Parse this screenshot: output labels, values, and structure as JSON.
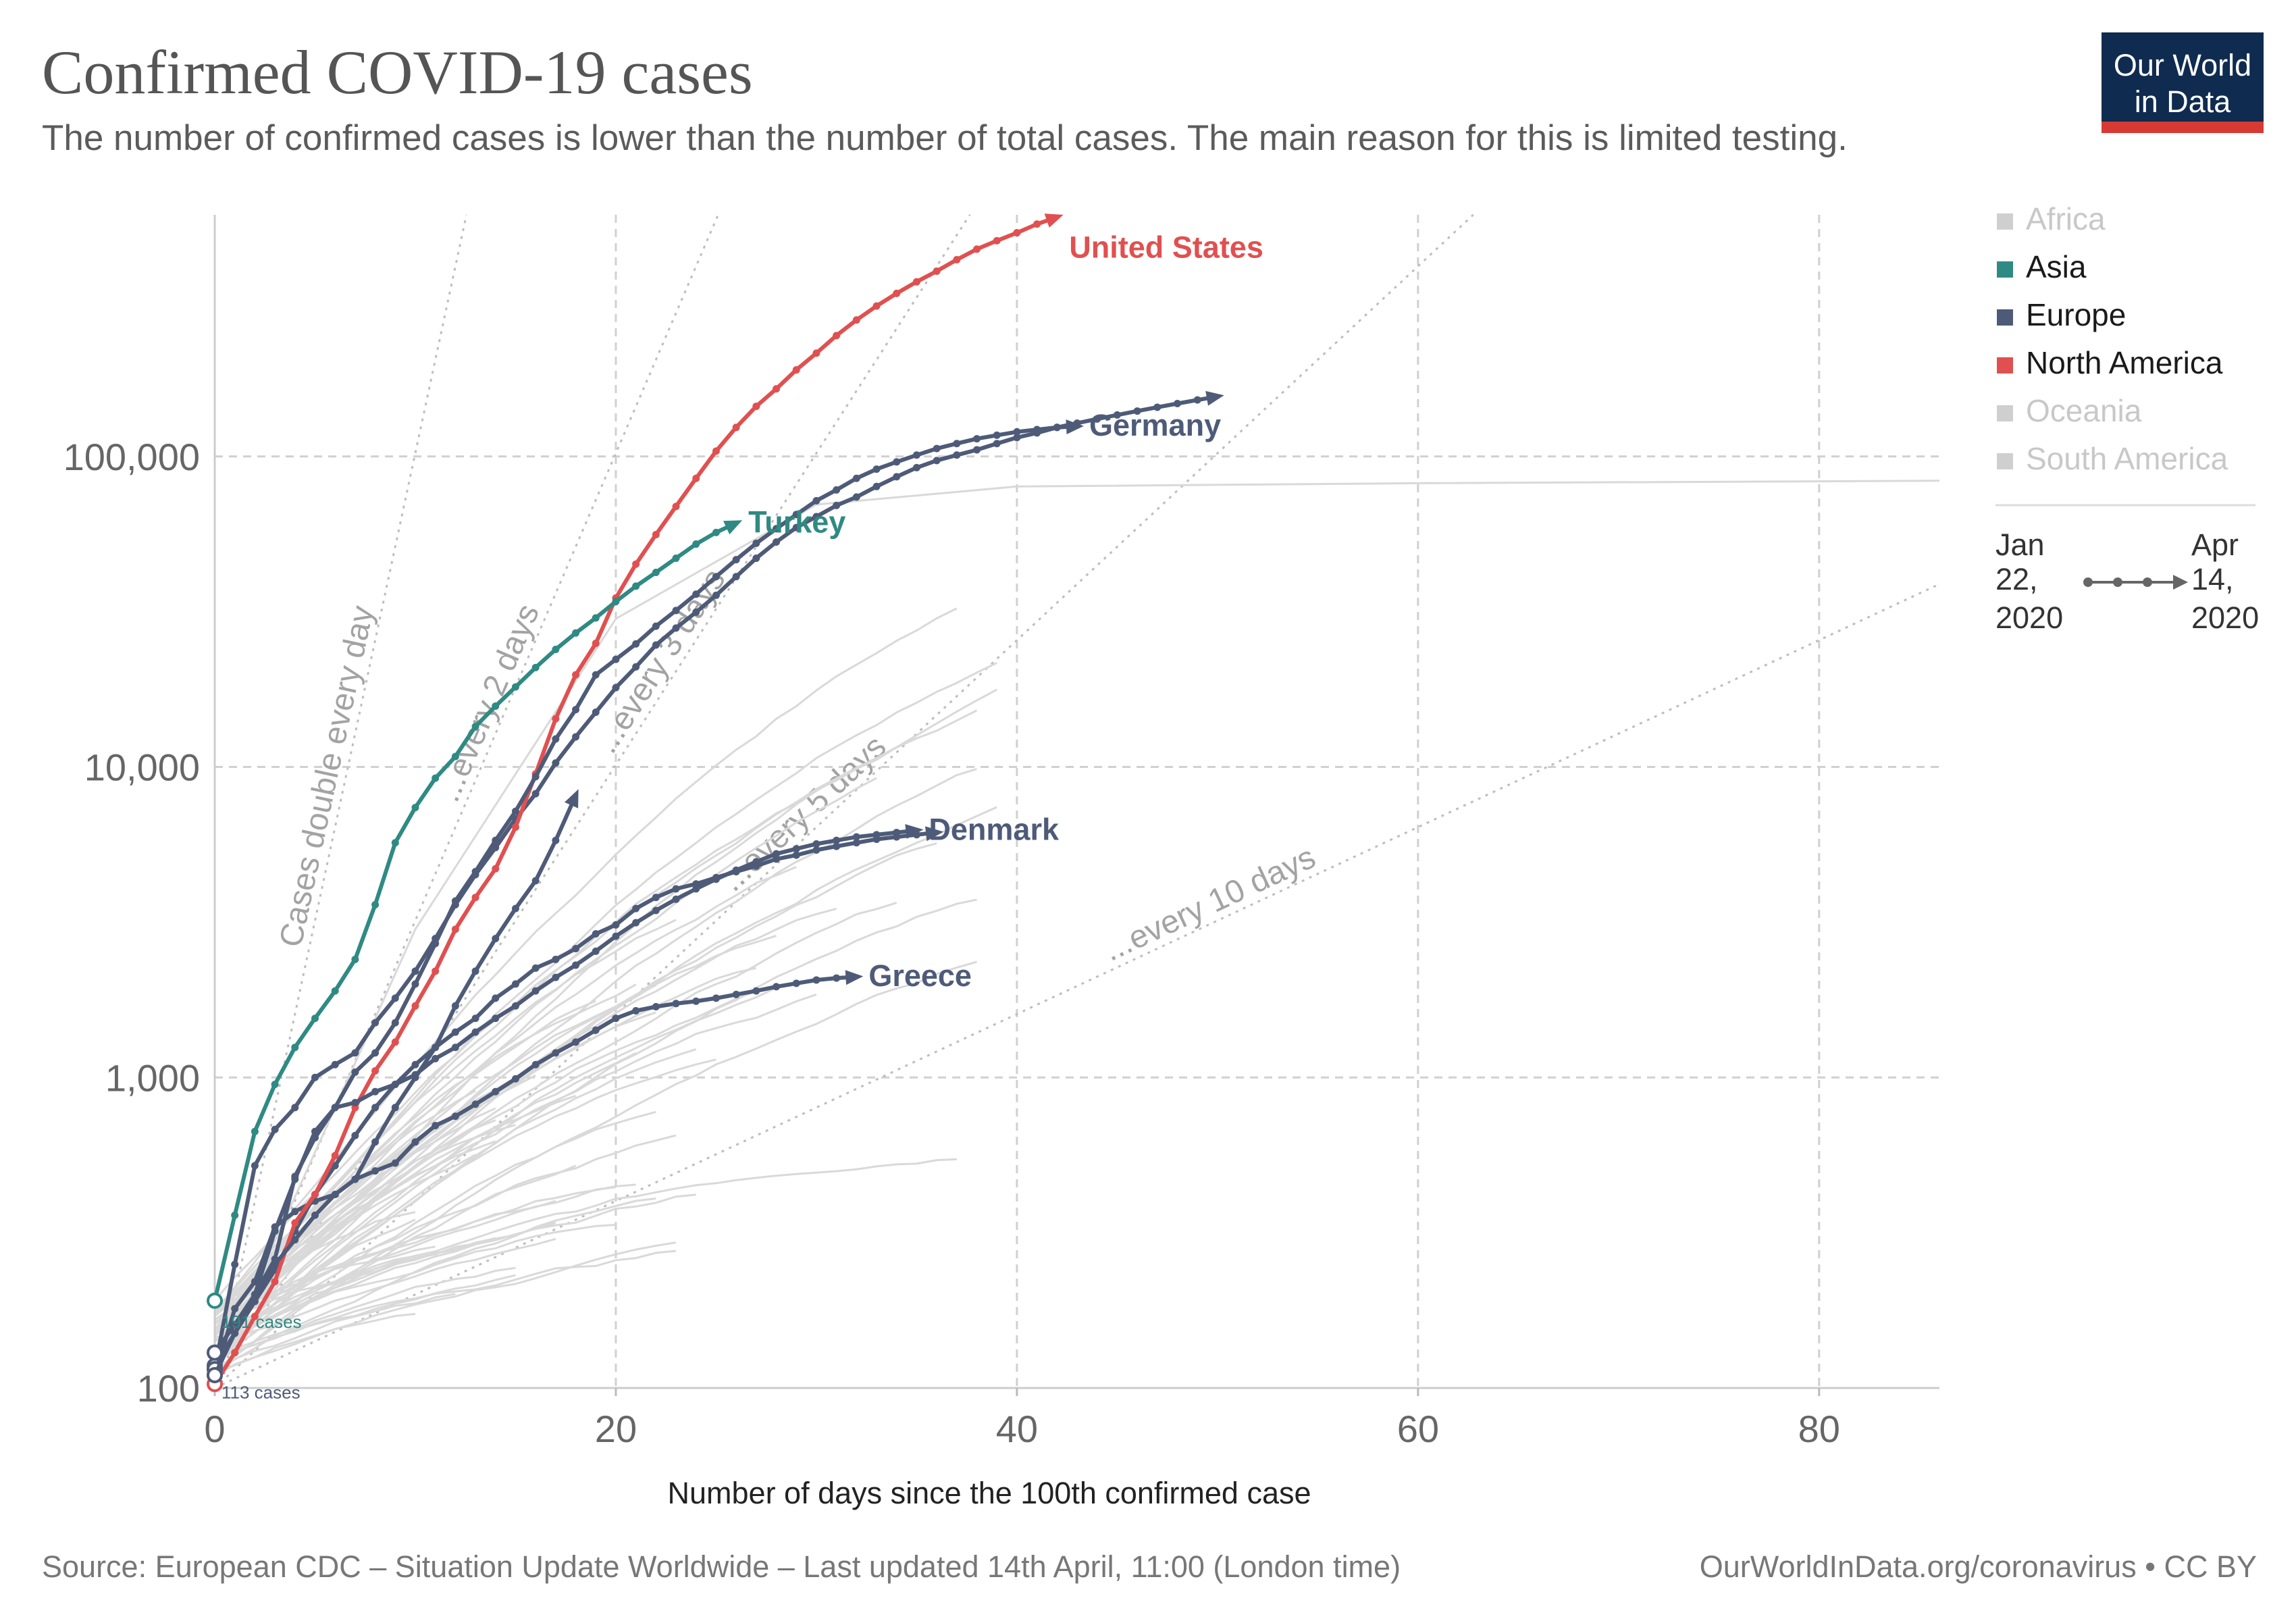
{
  "header": {
    "title": "Confirmed COVID-19 cases",
    "subtitle": "The number of confirmed cases is lower than the number of total cases. The main reason for this is limited testing."
  },
  "logo": {
    "line1": "Our World",
    "line2": "in Data",
    "bg_color": "#0f2b4f",
    "accent_color": "#d73a33"
  },
  "legend": {
    "regions": [
      {
        "label": "Africa",
        "color": "#cfcfcf",
        "text_color": "#c8c8c8"
      },
      {
        "label": "Asia",
        "color": "#2f8a83",
        "text_color": "#1a1a1a"
      },
      {
        "label": "Europe",
        "color": "#4e5b78",
        "text_color": "#1a1a1a"
      },
      {
        "label": "North America",
        "color": "#e05050",
        "text_color": "#1a1a1a"
      },
      {
        "label": "Oceania",
        "color": "#cfcfcf",
        "text_color": "#c8c8c8"
      },
      {
        "label": "South America",
        "color": "#cfcfcf",
        "text_color": "#c8c8c8"
      }
    ],
    "time_start": [
      "Jan",
      "22,",
      "2020"
    ],
    "time_end": [
      "Apr",
      "14,",
      "2020"
    ]
  },
  "footer": {
    "source": "Source: European CDC – Situation Update Worldwide – Last updated 14th April, 11:00 (London time)",
    "credit": "OurWorldInData.org/coronavirus • CC BY"
  },
  "chart_data": {
    "type": "line",
    "xlabel": "Number of days since the 100th confirmed case",
    "ylabel": "",
    "x_scale": "linear",
    "y_scale": "log",
    "xlim": [
      0,
      86
    ],
    "ylim": [
      100,
      600000
    ],
    "x_ticks": [
      0,
      20,
      40,
      60,
      80
    ],
    "x_tick_labels": [
      "0",
      "20",
      "40",
      "60",
      "80"
    ],
    "y_ticks": [
      100,
      1000,
      10000,
      100000
    ],
    "y_tick_labels": [
      "100",
      "1,000",
      "10,000",
      "100,000"
    ],
    "grid": true,
    "legend_position": "right",
    "guides": [
      {
        "label": "Cases double every day",
        "doubling_days": 1
      },
      {
        "label": "...every 2 days",
        "doubling_days": 2
      },
      {
        "label": "...every 3 days",
        "doubling_days": 3
      },
      {
        "label": "...every 5 days",
        "doubling_days": 5
      },
      {
        "label": "...every 10 days",
        "doubling_days": 10
      }
    ],
    "start_annotations": [
      {
        "label": "191 cases",
        "value": 191,
        "color": "#2f8a83"
      },
      {
        "label": "113 cases",
        "value": 113,
        "color": "#4e5b78"
      }
    ],
    "series": [
      {
        "name": "United States",
        "region": "North America",
        "color": "#e05050",
        "x": [
          0,
          1,
          2,
          3,
          4,
          5,
          6,
          7,
          8,
          9,
          10,
          11,
          12,
          13,
          14,
          15,
          16,
          17,
          18,
          19,
          20,
          21,
          22,
          23,
          24,
          25,
          26,
          27,
          28,
          29,
          30,
          31,
          32,
          33,
          34,
          35,
          36,
          37,
          38,
          39,
          40,
          41,
          42
        ],
        "y": [
          103,
          130,
          170,
          220,
          340,
          420,
          560,
          800,
          1050,
          1300,
          1700,
          2200,
          3000,
          3800,
          4700,
          6400,
          9500,
          14300,
          19800,
          25000,
          35000,
          45000,
          56000,
          69000,
          85000,
          104000,
          124000,
          145000,
          165000,
          190000,
          215000,
          245000,
          275000,
          305000,
          335000,
          365000,
          395000,
          430000,
          465000,
          495000,
          525000,
          560000,
          590000
        ]
      },
      {
        "name": "Turkey",
        "region": "Asia",
        "color": "#2f8a83",
        "x": [
          0,
          1,
          2,
          3,
          4,
          5,
          6,
          7,
          8,
          9,
          10,
          11,
          12,
          13,
          14,
          15,
          16,
          17,
          18,
          19,
          20,
          21,
          22,
          23,
          24,
          25,
          26
        ],
        "y": [
          191,
          360,
          670,
          950,
          1250,
          1550,
          1900,
          2400,
          3600,
          5700,
          7400,
          9200,
          10800,
          13500,
          15700,
          18100,
          20900,
          23900,
          27000,
          30200,
          34100,
          38200,
          42300,
          47000,
          52200,
          56900,
          61000
        ]
      },
      {
        "name": "Germany",
        "region": "Europe",
        "color": "#4e5b78",
        "x": [
          0,
          1,
          2,
          3,
          4,
          5,
          6,
          7,
          8,
          9,
          10,
          11,
          12,
          13,
          14,
          15,
          16,
          17,
          18,
          19,
          20,
          21,
          22,
          23,
          24,
          25,
          26,
          27,
          28,
          29,
          30,
          31,
          32,
          33,
          34,
          35,
          36,
          37,
          38,
          39,
          40,
          41,
          42,
          43
        ],
        "y": [
          130,
          160,
          200,
          260,
          480,
          640,
          800,
          1040,
          1200,
          1500,
          2000,
          2700,
          3700,
          4600,
          5800,
          7200,
          9300,
          12300,
          15300,
          19800,
          22200,
          24900,
          28400,
          31900,
          36000,
          41000,
          46500,
          52500,
          58500,
          65000,
          72000,
          78000,
          85000,
          91000,
          96000,
          101000,
          106000,
          110000,
          114000,
          117000,
          120000,
          122000,
          124000,
          125000
        ]
      },
      {
        "name": "Denmark",
        "region": "Europe",
        "color": "#4e5b78",
        "x": [
          0,
          1,
          2,
          3,
          4,
          5,
          6,
          7,
          8,
          9,
          10,
          11,
          12,
          13,
          14,
          15,
          16,
          17,
          18,
          19,
          20,
          21,
          22,
          23,
          24,
          25,
          26,
          27,
          28,
          29,
          30,
          31,
          32,
          33,
          34,
          35
        ],
        "y": [
          115,
          150,
          200,
          320,
          470,
          670,
          800,
          830,
          900,
          950,
          1020,
          1150,
          1250,
          1400,
          1550,
          1700,
          1900,
          2100,
          2300,
          2550,
          2850,
          3150,
          3450,
          3750,
          4050,
          4350,
          4650,
          4950,
          5250,
          5450,
          5650,
          5800,
          5950,
          6050,
          6150,
          6250
        ]
      },
      {
        "name": "Greece",
        "region": "Europe",
        "color": "#4e5b78",
        "x": [
          0,
          1,
          2,
          3,
          4,
          5,
          6,
          7,
          8,
          9,
          10,
          11,
          12,
          13,
          14,
          15,
          16,
          17,
          18,
          19,
          20,
          21,
          22,
          23,
          24,
          25,
          26,
          27,
          28,
          29,
          30,
          31,
          32
        ],
        "y": [
          110,
          150,
          200,
          250,
          300,
          360,
          420,
          470,
          500,
          530,
          620,
          700,
          750,
          820,
          900,
          990,
          1100,
          1200,
          1300,
          1420,
          1550,
          1640,
          1690,
          1730,
          1760,
          1800,
          1850,
          1900,
          1960,
          2010,
          2060,
          2090,
          2110
        ]
      },
      {
        "name": "",
        "region": "Europe",
        "color": "#4e5b78",
        "x": [
          0,
          1,
          2,
          3,
          4,
          5,
          6,
          7,
          8,
          9,
          10,
          11,
          12,
          13,
          14,
          15,
          16,
          17,
          18,
          19,
          20,
          21,
          22,
          23,
          24,
          25,
          26,
          27,
          28,
          29,
          30,
          31,
          32,
          33,
          34,
          35,
          36,
          37,
          38,
          39,
          40,
          41,
          42,
          43,
          44,
          45,
          46,
          47,
          48,
          49,
          50
        ],
        "y": [
          115,
          250,
          520,
          680,
          800,
          1000,
          1100,
          1200,
          1500,
          1800,
          2200,
          2800,
          3600,
          4500,
          5500,
          6800,
          8200,
          10300,
          12500,
          15000,
          18000,
          21000,
          24700,
          28000,
          31500,
          35700,
          41000,
          47000,
          53000,
          59000,
          64000,
          69500,
          74000,
          80000,
          86000,
          92000,
          97000,
          101000,
          105000,
          110000,
          115000,
          119000,
          124000,
          128000,
          132000,
          136000,
          140000,
          144000,
          148000,
          152000,
          156000
        ]
      },
      {
        "name": "",
        "region": "Europe",
        "color": "#4e5b78",
        "x": [
          0,
          1,
          2,
          3,
          4,
          5,
          6,
          7,
          8,
          9,
          10,
          11,
          12,
          13,
          14,
          15,
          16,
          17,
          18,
          19,
          20,
          21,
          22,
          23,
          24,
          25,
          26,
          27,
          28,
          29,
          30,
          31,
          32,
          33,
          34,
          35,
          36
        ],
        "y": [
          118,
          150,
          190,
          240,
          320,
          420,
          520,
          650,
          800,
          950,
          1100,
          1250,
          1400,
          1550,
          1800,
          2000,
          2250,
          2400,
          2600,
          2900,
          3100,
          3500,
          3800,
          4050,
          4200,
          4400,
          4600,
          4800,
          5050,
          5200,
          5400,
          5550,
          5700,
          5850,
          5950,
          6050,
          6150
        ]
      },
      {
        "name": "",
        "region": "Europe",
        "color": "#4e5b78",
        "x": [
          0,
          1,
          2,
          3,
          4,
          5,
          6,
          7,
          8,
          9,
          10,
          11,
          12,
          13,
          14,
          15,
          16,
          17,
          18
        ],
        "y": [
          110,
          180,
          220,
          330,
          370,
          400,
          420,
          470,
          620,
          800,
          1000,
          1250,
          1700,
          2200,
          2800,
          3500,
          4300,
          5800,
          8100
        ]
      }
    ]
  }
}
